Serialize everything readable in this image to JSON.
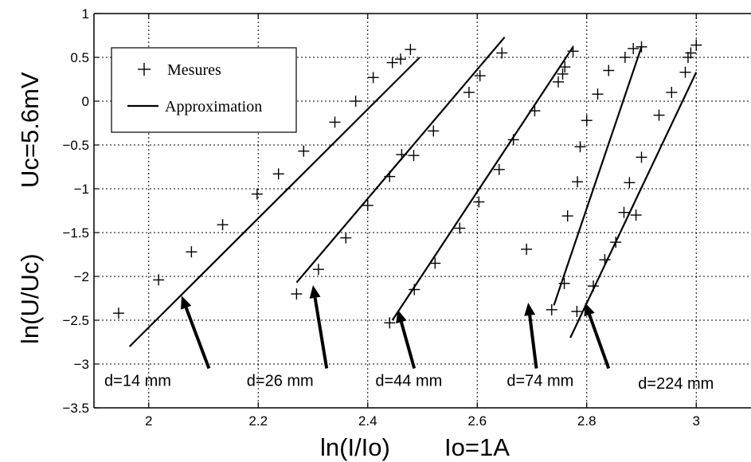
{
  "chart_data": {
    "type": "scatter",
    "x_axis": {
      "label": "ln(I/Io)",
      "note": "Io=1A",
      "range": [
        1.9,
        3.1
      ],
      "ticks": [
        2,
        2.2,
        2.4,
        2.6,
        2.8,
        3
      ],
      "tick_labels": [
        "2",
        "2.2",
        "2.4",
        "2.6",
        "2.8",
        "3"
      ]
    },
    "y_axis": {
      "label": "ln(U/Uc)",
      "note": "Uc=5.6mV",
      "range": [
        -3.5,
        1
      ],
      "ticks": [
        1,
        0.5,
        0,
        -0.5,
        -1,
        -1.5,
        -2,
        -2.5,
        -3,
        -3.5
      ],
      "tick_labels": [
        "1",
        "0.5",
        "0",
        "−0.5",
        "−1",
        "−1.5",
        "−2",
        "−2.5",
        "−3",
        "−3.5"
      ]
    },
    "grid": true,
    "legend": {
      "position": "top-left",
      "entries": [
        {
          "label": "Mesures",
          "marker": "plus"
        },
        {
          "label": "Approximation",
          "marker": "line"
        }
      ]
    },
    "series": [
      {
        "group": "d=14 mm",
        "measures": {
          "x": [
            1.945,
            2.018,
            2.078,
            2.135,
            2.198,
            2.237,
            2.283,
            2.34,
            2.378,
            2.41,
            2.445,
            2.46,
            2.478
          ],
          "y": [
            -2.42,
            -2.04,
            -1.72,
            -1.41,
            -1.06,
            -0.83,
            -0.57,
            -0.24,
            0.0,
            0.27,
            0.44,
            0.48,
            0.59
          ]
        },
        "fit": {
          "x": [
            1.965,
            2.495
          ],
          "y": [
            -2.8,
            0.5
          ]
        }
      },
      {
        "group": "d=26 mm",
        "measures": {
          "x": [
            2.27,
            2.31,
            2.36,
            2.4,
            2.44,
            2.462,
            2.484,
            2.52,
            2.585,
            2.605,
            2.645
          ],
          "y": [
            -2.2,
            -1.92,
            -1.56,
            -1.19,
            -0.86,
            -0.61,
            -0.62,
            -0.34,
            0.1,
            0.29,
            0.55
          ]
        },
        "fit": {
          "x": [
            2.27,
            2.65
          ],
          "y": [
            -2.07,
            0.73
          ]
        }
      },
      {
        "group": "d=44 mm",
        "measures": {
          "x": [
            2.44,
            2.485,
            2.523,
            2.568,
            2.603,
            2.64,
            2.666,
            2.69,
            2.705,
            2.748,
            2.756,
            2.76,
            2.775
          ],
          "y": [
            -2.53,
            -2.15,
            -1.85,
            -1.45,
            -1.15,
            -0.78,
            -0.44,
            -1.69,
            -0.11,
            0.22,
            0.31,
            0.39,
            0.57
          ]
        },
        "fit": {
          "x": [
            2.445,
            2.775
          ],
          "y": [
            -2.5,
            0.62
          ]
        }
      },
      {
        "group": "d=74 mm",
        "measures": {
          "x": [
            2.736,
            2.759,
            2.765,
            2.783,
            2.788,
            2.8,
            2.82,
            2.84,
            2.87,
            2.885,
            2.89,
            2.9
          ],
          "y": [
            -2.38,
            -2.08,
            -1.31,
            -0.92,
            -0.52,
            -0.22,
            0.08,
            0.35,
            0.5,
            0.6,
            -1.3,
            0.62
          ]
        },
        "fit": {
          "x": [
            2.74,
            2.9
          ],
          "y": [
            -2.33,
            0.62
          ]
        }
      },
      {
        "group": "d=224 mm",
        "measures": {
          "x": [
            2.782,
            2.812,
            2.833,
            2.853,
            2.868,
            2.878,
            2.9,
            2.932,
            2.955,
            2.98,
            2.985,
            2.99,
            3.0
          ],
          "y": [
            -2.4,
            -2.11,
            -1.81,
            -1.61,
            -1.27,
            -0.93,
            -0.64,
            -0.16,
            0.1,
            0.33,
            0.5,
            0.55,
            0.64
          ]
        },
        "fit": {
          "x": [
            2.77,
            3.0
          ],
          "y": [
            -2.7,
            0.33
          ]
        }
      }
    ],
    "annotations": [
      {
        "text": "d=14 mm",
        "text_x": 1.98,
        "text_y": -3.25,
        "arrow_from": [
          2.11,
          -3.05
        ],
        "arrow_to": [
          2.06,
          -2.22
        ]
      },
      {
        "text": "d=26 mm",
        "text_x": 2.24,
        "text_y": -3.25,
        "arrow_from": [
          2.325,
          -3.05
        ],
        "arrow_to": [
          2.3,
          -2.1
        ]
      },
      {
        "text": "d=44 mm",
        "text_x": 2.475,
        "text_y": -3.25,
        "arrow_from": [
          2.485,
          -3.05
        ],
        "arrow_to": [
          2.455,
          -2.38
        ]
      },
      {
        "text": "d=74 mm",
        "text_x": 2.715,
        "text_y": -3.25,
        "arrow_from": [
          2.708,
          -3.05
        ],
        "arrow_to": [
          2.693,
          -2.3
        ]
      },
      {
        "text": "d=224 mm",
        "text_x": 2.963,
        "text_y": -3.28,
        "arrow_from": [
          2.84,
          -3.05
        ],
        "arrow_to": [
          2.797,
          -2.3
        ]
      }
    ]
  }
}
